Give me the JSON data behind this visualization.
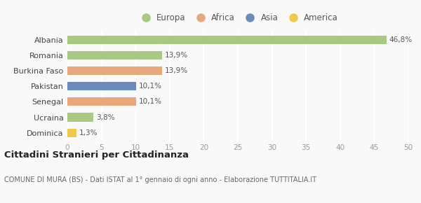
{
  "categories": [
    "Dominica",
    "Ucraina",
    "Senegal",
    "Pakistan",
    "Burkina Faso",
    "Romania",
    "Albania"
  ],
  "values": [
    1.3,
    3.8,
    10.1,
    10.1,
    13.9,
    13.9,
    46.8
  ],
  "labels": [
    "1,3%",
    "3,8%",
    "10,1%",
    "10,1%",
    "13,9%",
    "13,9%",
    "46,8%"
  ],
  "colors": [
    "#f0c84a",
    "#a8c97f",
    "#e8a87c",
    "#6b8cba",
    "#e8a87c",
    "#a8c97f",
    "#a8c97f"
  ],
  "legend_entries": [
    {
      "label": "Europa",
      "color": "#a8c97f"
    },
    {
      "label": "Africa",
      "color": "#e8a87c"
    },
    {
      "label": "Asia",
      "color": "#6b8cba"
    },
    {
      "label": "America",
      "color": "#f0c84a"
    }
  ],
  "xlim": [
    0,
    50
  ],
  "xticks": [
    0,
    5,
    10,
    15,
    20,
    25,
    30,
    35,
    40,
    45,
    50
  ],
  "title": "Cittadini Stranieri per Cittadinanza",
  "subtitle": "COMUNE DI MURA (BS) - Dati ISTAT al 1° gennaio di ogni anno - Elaborazione TUTTITALIA.IT",
  "background_color": "#f9f9f9",
  "grid_color": "#ffffff",
  "bar_height": 0.55
}
